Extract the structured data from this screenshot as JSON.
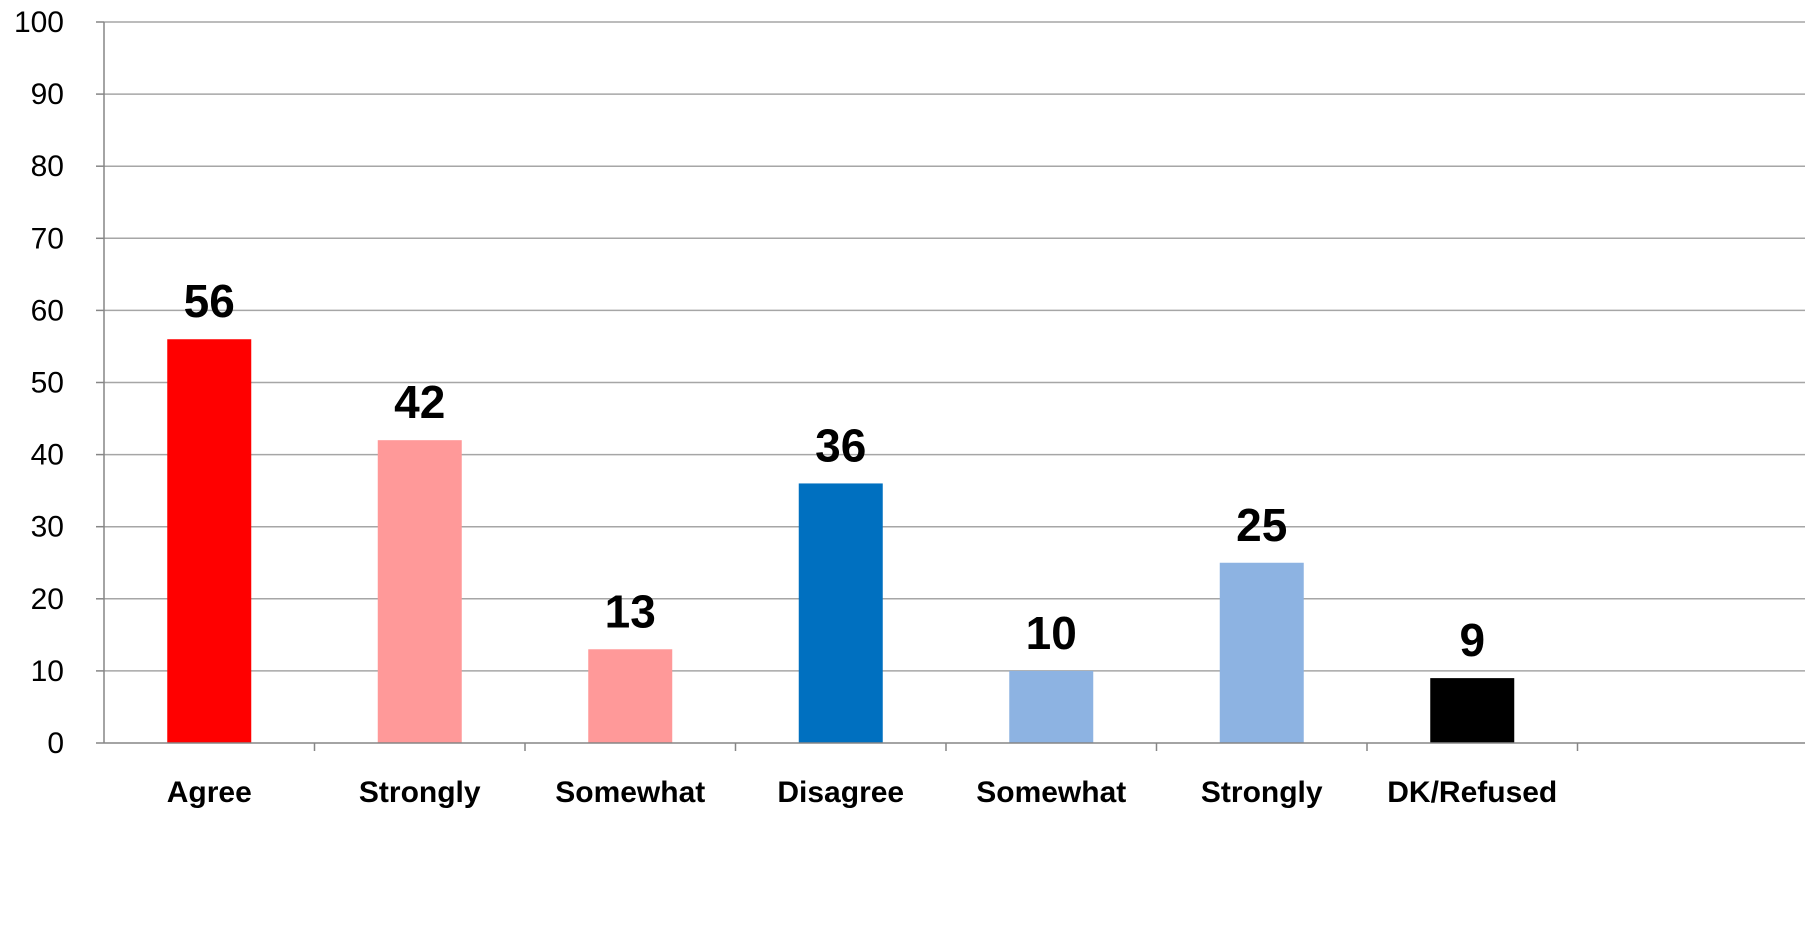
{
  "chart_data": {
    "type": "bar",
    "title": "",
    "xlabel": "",
    "ylabel": "",
    "ylim": [
      0,
      100
    ],
    "yticks": [
      0,
      10,
      20,
      30,
      40,
      50,
      60,
      70,
      80,
      90,
      100
    ],
    "categories": [
      "Agree",
      "Strongly",
      "Somewhat",
      "Disagree",
      "Somewhat",
      "Strongly",
      "DK/Refused"
    ],
    "values": [
      56,
      42,
      13,
      36,
      10,
      25,
      9
    ],
    "data_labels": [
      "56",
      "42",
      "13",
      "36",
      "10",
      "25",
      "9"
    ],
    "colors": [
      "#ff0000",
      "#ff9999",
      "#ff9999",
      "#0070c0",
      "#8db3e2",
      "#8db3e2",
      "#000000"
    ],
    "grid": true,
    "legend": "none"
  }
}
